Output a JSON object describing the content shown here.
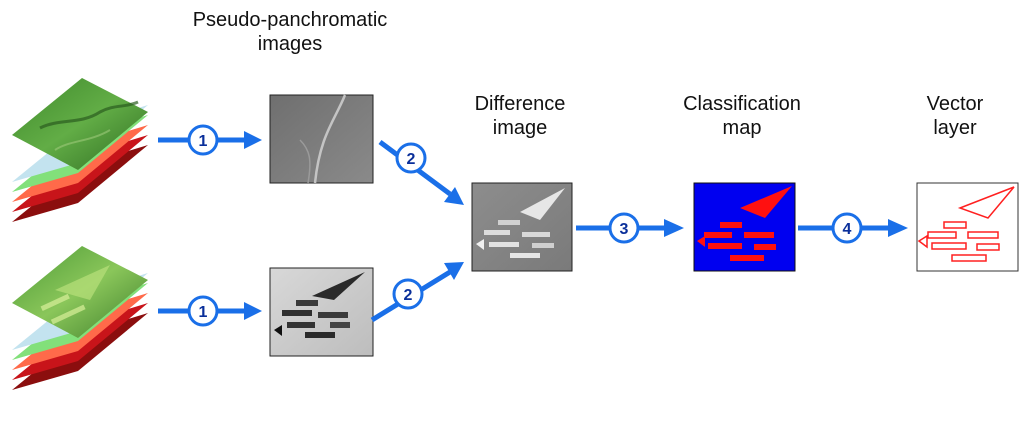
{
  "labels": {
    "pseudo_panchromatic": [
      "Pseudo-panchromatic",
      "images"
    ],
    "difference": [
      "Difference",
      "image"
    ],
    "classification": [
      "Classification",
      "map"
    ],
    "vector": [
      "Vector",
      "layer"
    ]
  },
  "steps": {
    "top_1": "1",
    "bottom_1": "1",
    "top_2": "2",
    "bottom_2": "2",
    "three": "3",
    "four": "4"
  },
  "colors": {
    "arrow": "#1a6fe8",
    "circle_text": "#0a2f9a",
    "classification_background": "#0000f0",
    "change_red": "#ff1010"
  },
  "images": {
    "input_stacks": [
      "stack-icon",
      "stack-icon"
    ],
    "pseudo_panchromatic": [
      "grayscale-image",
      "grayscale-image"
    ],
    "difference": "difference-image",
    "classification": "classification-map-image",
    "vector": "vector-layer-image"
  }
}
